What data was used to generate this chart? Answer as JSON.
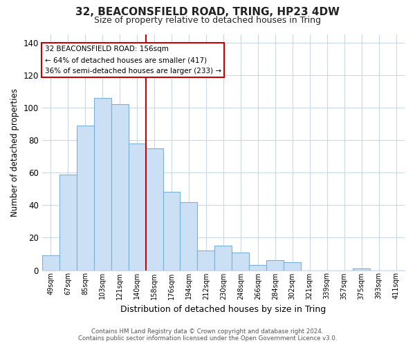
{
  "title_line1": "32, BEACONSFIELD ROAD, TRING, HP23 4DW",
  "title_line2": "Size of property relative to detached houses in Tring",
  "xlabel": "Distribution of detached houses by size in Tring",
  "ylabel": "Number of detached properties",
  "bar_labels": [
    "49sqm",
    "67sqm",
    "85sqm",
    "103sqm",
    "121sqm",
    "140sqm",
    "158sqm",
    "176sqm",
    "194sqm",
    "212sqm",
    "230sqm",
    "248sqm",
    "266sqm",
    "284sqm",
    "302sqm",
    "321sqm",
    "339sqm",
    "357sqm",
    "375sqm",
    "393sqm",
    "411sqm"
  ],
  "bar_values": [
    9,
    59,
    89,
    106,
    102,
    78,
    75,
    48,
    42,
    12,
    15,
    11,
    3,
    6,
    5,
    0,
    0,
    0,
    1,
    0,
    0
  ],
  "bar_color": "#cce0f5",
  "bar_edge_color": "#7ab0d8",
  "vline_color": "#cc0000",
  "vline_index": 6,
  "ylim": [
    0,
    145
  ],
  "yticks": [
    0,
    20,
    40,
    60,
    80,
    100,
    120,
    140
  ],
  "annotation_lines": [
    "32 BEACONSFIELD ROAD: 156sqm",
    "← 64% of detached houses are smaller (417)",
    "36% of semi-detached houses are larger (233) →"
  ],
  "footer_line1": "Contains HM Land Registry data © Crown copyright and database right 2024.",
  "footer_line2": "Contains public sector information licensed under the Open Government Licence v3.0.",
  "background_color": "#ffffff",
  "grid_color": "#c8d8e8",
  "ann_box_edge_color": "#cc0000",
  "ann_box_face_color": "#ffffff"
}
